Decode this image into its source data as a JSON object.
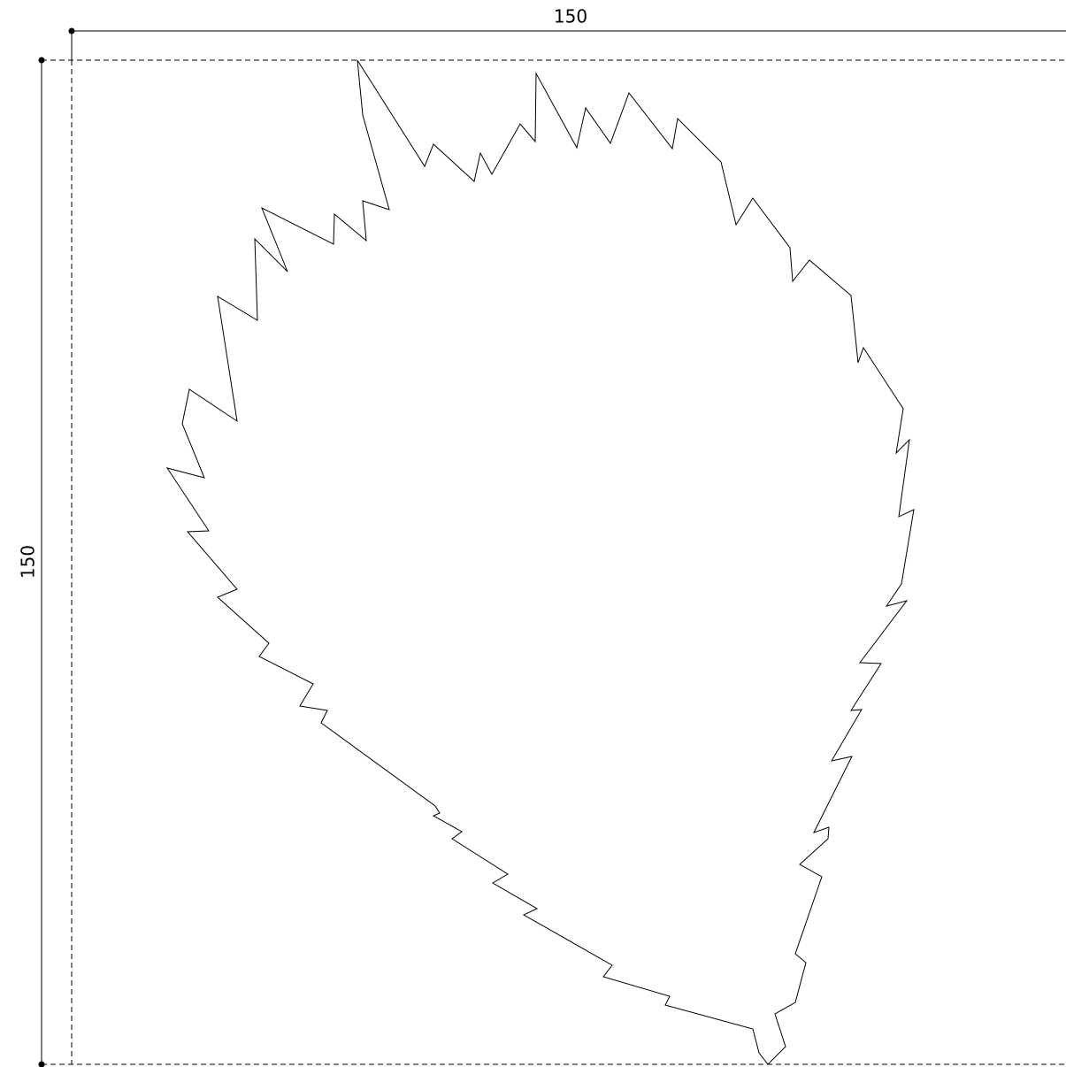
{
  "width_dimension": "150",
  "height_dimension": "150"
}
